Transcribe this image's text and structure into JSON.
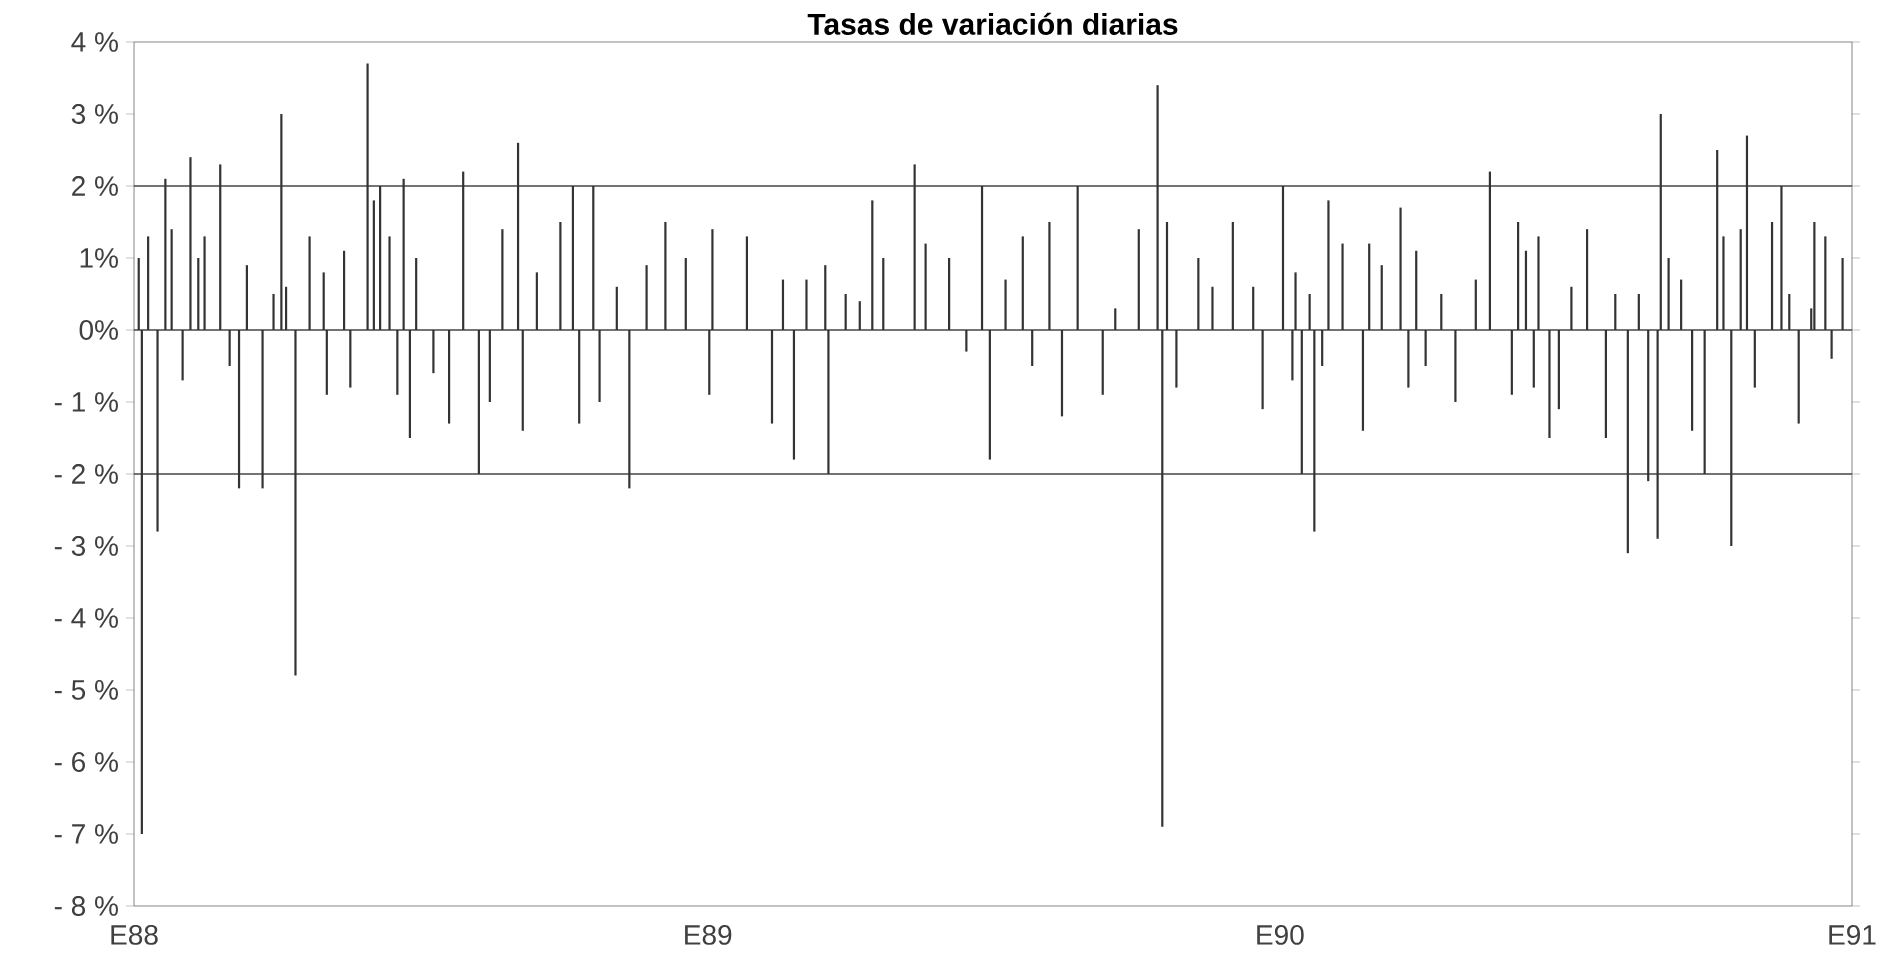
{
  "chart_data": {
    "type": "bar",
    "title": "Tasas de variación diarias",
    "color": "#333333",
    "x": [
      "1988-01-04",
      "1988-01-06",
      "1988-01-10",
      "1988-01-16",
      "1988-01-21",
      "1988-01-25",
      "1988-02-01",
      "1988-02-06",
      "1988-02-11",
      "1988-02-15",
      "1988-02-25",
      "1988-03-02",
      "1988-03-08",
      "1988-03-13",
      "1988-03-23",
      "1988-03-30",
      "1988-04-04",
      "1988-04-07",
      "1988-04-13",
      "1988-04-22",
      "1988-05-01",
      "1988-05-03",
      "1988-05-14",
      "1988-05-18",
      "1988-05-29",
      "1988-06-02",
      "1988-06-06",
      "1988-06-12",
      "1988-06-17",
      "1988-06-21",
      "1988-06-25",
      "1988-06-29",
      "1988-07-10",
      "1988-07-20",
      "1988-07-29",
      "1988-08-08",
      "1988-08-15",
      "1988-08-23",
      "1988-09-02",
      "1988-09-05",
      "1988-09-14",
      "1988-09-29",
      "1988-10-07",
      "1988-10-11",
      "1988-10-20",
      "1988-10-24",
      "1988-11-04",
      "1988-11-12",
      "1988-11-23",
      "1988-12-05",
      "1988-12-18",
      "1989-01-02",
      "1989-01-04",
      "1989-01-26",
      "1989-02-11",
      "1989-02-18",
      "1989-02-25",
      "1989-03-05",
      "1989-03-17",
      "1989-03-19",
      "1989-03-30",
      "1989-04-08",
      "1989-04-16",
      "1989-04-23",
      "1989-05-13",
      "1989-05-20",
      "1989-06-04",
      "1989-06-15",
      "1989-06-25",
      "1989-06-30",
      "1989-07-10",
      "1989-07-21",
      "1989-07-27",
      "1989-08-07",
      "1989-08-15",
      "1989-08-25",
      "1989-09-10",
      "1989-09-18",
      "1989-10-03",
      "1989-10-15",
      "1989-10-18",
      "1989-10-21",
      "1989-10-27",
      "1989-11-10",
      "1989-11-19",
      "1989-12-02",
      "1989-12-15",
      "1989-12-21",
      "1990-01-03",
      "1990-01-09",
      "1990-01-11",
      "1990-01-15",
      "1990-01-20",
      "1990-01-23",
      "1990-01-28",
      "1990-02-01",
      "1990-02-10",
      "1990-02-23",
      "1990-02-27",
      "1990-03-07",
      "1990-03-19",
      "1990-03-24",
      "1990-03-29",
      "1990-04-04",
      "1990-04-14",
      "1990-04-23",
      "1990-05-06",
      "1990-05-15",
      "1990-05-29",
      "1990-06-02",
      "1990-06-07",
      "1990-06-12",
      "1990-06-15",
      "1990-06-22",
      "1990-06-28",
      "1990-07-06",
      "1990-07-16",
      "1990-07-28",
      "1990-08-03",
      "1990-08-11",
      "1990-08-18",
      "1990-08-24",
      "1990-08-30",
      "1990-09-01",
      "1990-09-06",
      "1990-09-14",
      "1990-09-21",
      "1990-09-29",
      "1990-10-07",
      "1990-10-11",
      "1990-10-16",
      "1990-10-22",
      "1990-10-26",
      "1990-10-31",
      "1990-11-11",
      "1990-11-17",
      "1990-11-22",
      "1990-11-28",
      "1990-12-06",
      "1990-12-08",
      "1990-12-15",
      "1990-12-19",
      "1990-12-26"
    ],
    "values": [
      1.0,
      -7.0,
      1.3,
      -2.8,
      2.1,
      1.4,
      -0.7,
      2.4,
      1.0,
      1.3,
      2.3,
      -0.5,
      -2.2,
      0.9,
      -2.2,
      0.5,
      3.0,
      0.6,
      -4.8,
      1.3,
      0.8,
      -0.9,
      1.1,
      -0.8,
      3.7,
      1.8,
      2.0,
      1.3,
      -0.9,
      2.1,
      -1.5,
      1.0,
      -0.6,
      -1.3,
      2.2,
      -2.0,
      -1.0,
      1.4,
      2.6,
      -1.4,
      0.8,
      1.5,
      2.0,
      -1.3,
      2.0,
      -1.0,
      0.6,
      -2.2,
      0.9,
      1.5,
      1.0,
      -0.9,
      1.4,
      1.3,
      -1.3,
      0.7,
      -1.8,
      0.7,
      0.9,
      -2.0,
      0.5,
      0.4,
      1.8,
      1.0,
      2.3,
      1.2,
      1.0,
      -0.3,
      2.0,
      -1.8,
      0.7,
      1.3,
      -0.5,
      1.5,
      -1.2,
      2.0,
      -0.9,
      0.3,
      1.4,
      3.4,
      -6.9,
      1.5,
      -0.8,
      1.0,
      0.6,
      1.5,
      0.6,
      -1.1,
      2.0,
      -0.7,
      0.8,
      -2.0,
      0.5,
      -2.8,
      -0.5,
      1.8,
      1.2,
      -1.4,
      1.2,
      0.9,
      1.7,
      -0.8,
      1.1,
      -0.5,
      0.5,
      -1.0,
      0.7,
      2.2,
      -0.9,
      1.5,
      1.1,
      -0.8,
      1.3,
      -1.5,
      -1.1,
      0.6,
      1.4,
      -1.5,
      0.5,
      -3.1,
      0.5,
      -2.1,
      -2.9,
      3.0,
      1.0,
      0.7,
      -1.4,
      -2.0,
      2.5,
      1.3,
      -3.0,
      1.4,
      2.7,
      -0.8,
      1.5,
      2.0,
      0.5,
      -1.3,
      0.3,
      1.5,
      1.3,
      -0.4,
      1.0
    ],
    "xlim": [
      "1988-01-01",
      "1991-01-01"
    ],
    "xticks": [
      {
        "value": "1988-01-01",
        "label": "E88"
      },
      {
        "value": "1989-01-01",
        "label": "E89"
      },
      {
        "value": "1990-01-01",
        "label": "E90"
      },
      {
        "value": "1991-01-01",
        "label": "E91"
      }
    ],
    "ylim": [
      -8,
      4
    ],
    "yticks": [
      {
        "value": 4,
        "label": "4 %"
      },
      {
        "value": 3,
        "label": "3 %"
      },
      {
        "value": 2,
        "label": "2 %"
      },
      {
        "value": 1,
        "label": "1%"
      },
      {
        "value": 0,
        "label": "0%"
      },
      {
        "value": -1,
        "label": "- 1 %"
      },
      {
        "value": -2,
        "label": "- 2 %"
      },
      {
        "value": -3,
        "label": "- 3 %"
      },
      {
        "value": -4,
        "label": "- 4 %"
      },
      {
        "value": -5,
        "label": "- 5 %"
      },
      {
        "value": -6,
        "label": "- 6 %"
      },
      {
        "value": -7,
        "label": "- 7 %"
      },
      {
        "value": -8,
        "label": "- 8 %"
      }
    ],
    "ref_lines": [
      {
        "axis": "y",
        "value": 2,
        "color": "#444444"
      },
      {
        "axis": "y",
        "value": 0,
        "color": "#444444"
      },
      {
        "axis": "y",
        "value": -2,
        "color": "#444444"
      }
    ]
  }
}
